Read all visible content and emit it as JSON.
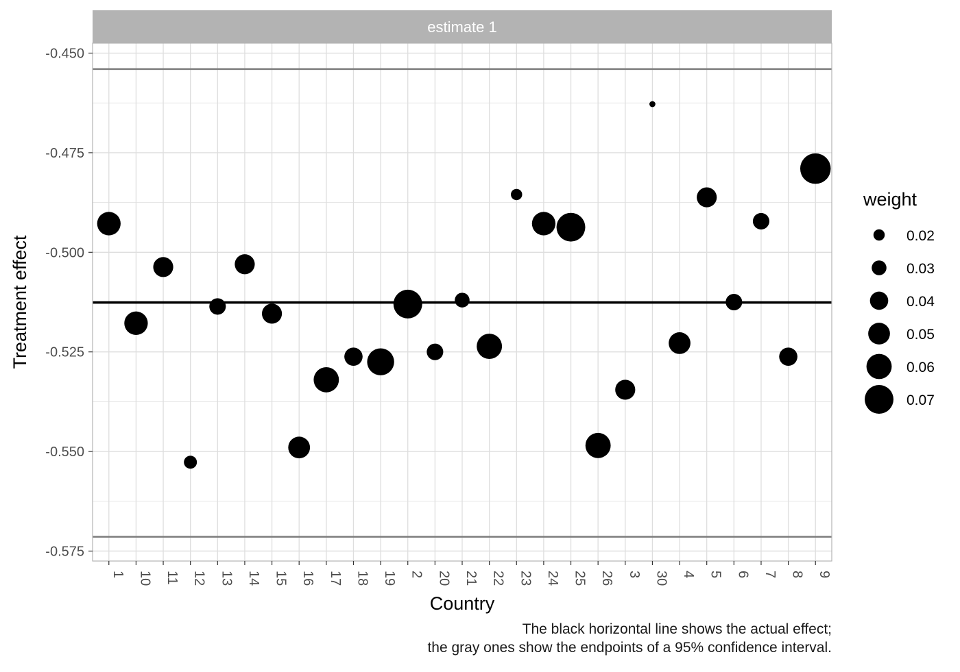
{
  "chart_data": {
    "type": "scatter",
    "facet_label": "estimate 1",
    "xlabel": "Country",
    "ylabel": "Treatment effect",
    "categories": [
      "1",
      "10",
      "11",
      "12",
      "13",
      "14",
      "15",
      "16",
      "17",
      "18",
      "19",
      "2",
      "20",
      "21",
      "22",
      "23",
      "24",
      "25",
      "26",
      "3",
      "30",
      "4",
      "5",
      "6",
      "7",
      "8",
      "9"
    ],
    "ylim": [
      -0.5775,
      -0.4475
    ],
    "yticks": [
      -0.45,
      -0.475,
      -0.5,
      -0.525,
      -0.55,
      -0.575
    ],
    "ytick_labels": [
      "-0.450",
      "-0.475",
      "-0.500",
      "-0.525",
      "-0.550",
      "-0.575"
    ],
    "grid": true,
    "points": [
      {
        "country": "1",
        "effect": -0.4928,
        "weight": 0.055
      },
      {
        "country": "10",
        "effect": -0.5178,
        "weight": 0.055
      },
      {
        "country": "11",
        "effect": -0.5037,
        "weight": 0.045
      },
      {
        "country": "12",
        "effect": -0.5527,
        "weight": 0.025
      },
      {
        "country": "13",
        "effect": -0.5136,
        "weight": 0.035
      },
      {
        "country": "14",
        "effect": -0.503,
        "weight": 0.045
      },
      {
        "country": "15",
        "effect": -0.5154,
        "weight": 0.045
      },
      {
        "country": "16",
        "effect": -0.549,
        "weight": 0.05
      },
      {
        "country": "17",
        "effect": -0.532,
        "weight": 0.06
      },
      {
        "country": "18",
        "effect": -0.5262,
        "weight": 0.04
      },
      {
        "country": "19",
        "effect": -0.5275,
        "weight": 0.065
      },
      {
        "country": "2",
        "effect": -0.513,
        "weight": 0.07
      },
      {
        "country": "20",
        "effect": -0.525,
        "weight": 0.035
      },
      {
        "country": "21",
        "effect": -0.512,
        "weight": 0.03
      },
      {
        "country": "22",
        "effect": -0.5236,
        "weight": 0.06
      },
      {
        "country": "23",
        "effect": -0.4855,
        "weight": 0.02
      },
      {
        "country": "24",
        "effect": -0.4928,
        "weight": 0.055
      },
      {
        "country": "25",
        "effect": -0.4937,
        "weight": 0.07
      },
      {
        "country": "26",
        "effect": -0.5485,
        "weight": 0.06
      },
      {
        "country": "3",
        "effect": -0.5345,
        "weight": 0.045
      },
      {
        "country": "30",
        "effect": -0.4628,
        "weight": 0.005
      },
      {
        "country": "4",
        "effect": -0.5228,
        "weight": 0.05
      },
      {
        "country": "5",
        "effect": -0.4862,
        "weight": 0.045
      },
      {
        "country": "6",
        "effect": -0.5125,
        "weight": 0.035
      },
      {
        "country": "7",
        "effect": -0.4922,
        "weight": 0.035
      },
      {
        "country": "8",
        "effect": -0.5262,
        "weight": 0.04
      },
      {
        "country": "9",
        "effect": -0.479,
        "weight": 0.075
      }
    ],
    "reference_lines": {
      "actual_effect": -0.5126,
      "ci_lower": -0.5714,
      "ci_upper": -0.454,
      "actual_color": "#000000",
      "ci_color": "#808080"
    },
    "legend": {
      "title": "weight",
      "position": "right",
      "entries": [
        {
          "label": "0.02",
          "value": 0.02
        },
        {
          "label": "0.03",
          "value": 0.03
        },
        {
          "label": "0.04",
          "value": 0.04
        },
        {
          "label": "0.05",
          "value": 0.05
        },
        {
          "label": "0.06",
          "value": 0.06
        },
        {
          "label": "0.07",
          "value": 0.07
        }
      ]
    },
    "colors": {
      "point": "#000000",
      "strip_fill": "#b3b3b3",
      "strip_text": "#ffffff",
      "grid": "#dedede",
      "panel_border": "#b3b3b3"
    }
  },
  "caption": {
    "line1": "The black horizontal line shows the actual effect;",
    "line2": "the gray ones show the endpoints of a 95% confidence interval."
  }
}
